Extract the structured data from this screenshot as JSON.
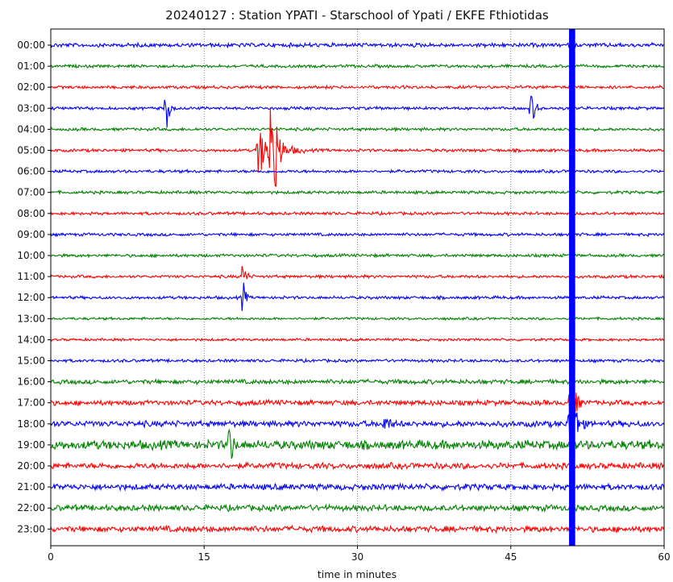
{
  "chart_data": {
    "type": "line",
    "title": "20240127 : Station YPATI -  Starschool of Ypati / EKFE Fthiotidas",
    "xlabel": "time in minutes",
    "ylabel": "",
    "xlim": [
      0,
      60
    ],
    "x_ticks": [
      "0",
      "15",
      "30",
      "45",
      "60"
    ],
    "x_tick_values": [
      0,
      15,
      30,
      45,
      60
    ],
    "grid": "vertical dotted lines at x ticks",
    "row_labels": [
      "00:00",
      "01:00",
      "02:00",
      "03:00",
      "04:00",
      "05:00",
      "06:00",
      "07:00",
      "08:00",
      "09:00",
      "10:00",
      "11:00",
      "12:00",
      "13:00",
      "14:00",
      "15:00",
      "16:00",
      "17:00",
      "18:00",
      "19:00",
      "20:00",
      "21:00",
      "22:00",
      "23:00"
    ],
    "row_colors": [
      "#0000ff",
      "#008000",
      "#ff0000",
      "#0000ff",
      "#008000",
      "#ff0000",
      "#0000ff",
      "#008000",
      "#ff0000",
      "#0000ff",
      "#008000",
      "#ff0000",
      "#0000ff",
      "#008000",
      "#ff0000",
      "#0000ff",
      "#008000",
      "#ff0000",
      "#0000ff",
      "#008000",
      "#ff0000",
      "#0000ff",
      "#008000",
      "#ff0000"
    ],
    "row_noise": [
      0.08,
      0.06,
      0.06,
      0.06,
      0.06,
      0.06,
      0.06,
      0.06,
      0.06,
      0.06,
      0.06,
      0.06,
      0.06,
      0.05,
      0.05,
      0.06,
      0.09,
      0.1,
      0.12,
      0.18,
      0.12,
      0.12,
      0.12,
      0.12
    ],
    "events": [
      {
        "row": 3,
        "minute": 11.3,
        "amplitude": 1.2,
        "duration_min": 0.8
      },
      {
        "row": 3,
        "minute": 47.0,
        "amplitude": 0.75,
        "duration_min": 1.2
      },
      {
        "row": 5,
        "minute": 20.3,
        "amplitude": 1.1,
        "duration_min": 4.5
      },
      {
        "row": 5,
        "minute": 21.6,
        "amplitude": 4.0,
        "duration_min": 1.2
      },
      {
        "row": 11,
        "minute": 18.8,
        "amplitude": 0.8,
        "duration_min": 0.8
      },
      {
        "row": 12,
        "minute": 18.8,
        "amplitude": 1.0,
        "duration_min": 0.6
      },
      {
        "row": 17,
        "minute": 50.8,
        "amplitude": 1.6,
        "duration_min": 1.3
      },
      {
        "row": 18,
        "minute": 32.5,
        "amplitude": 0.35,
        "duration_min": 1.8
      },
      {
        "row": 18,
        "minute": 50.8,
        "amplitude": 2.0,
        "duration_min": 1.5
      },
      {
        "row": 19,
        "minute": 17.5,
        "amplitude": 1.2,
        "duration_min": 0.8
      }
    ],
    "saturated_band": {
      "minute_start": 50.7,
      "minute_end": 51.3,
      "color": "#0000ff"
    }
  }
}
